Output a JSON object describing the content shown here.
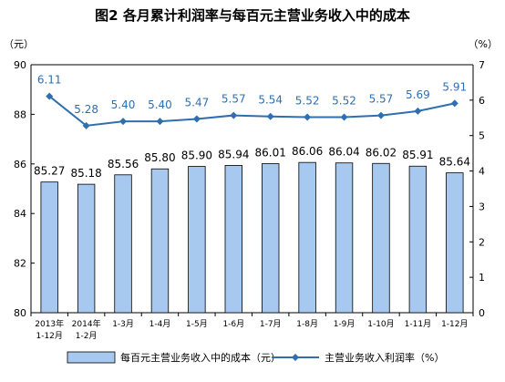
{
  "chart_data": {
    "type": "bar+line",
    "title": "图2  各月累计利润率与每百元主营业务收入中的成本",
    "categories": [
      [
        "2013年",
        "1-12月"
      ],
      [
        "2014年",
        "1-2月"
      ],
      [
        "1-3月"
      ],
      [
        "1-4月"
      ],
      [
        "1-5月"
      ],
      [
        "1-6月"
      ],
      [
        "1-7月"
      ],
      [
        "1-8月"
      ],
      [
        "1-9月"
      ],
      [
        "1-10月"
      ],
      [
        "1-11月"
      ],
      [
        "1-12月"
      ]
    ],
    "left_axis": {
      "unit": "（元）",
      "ylim": [
        80,
        90
      ],
      "ticks": [
        "80",
        "82",
        "84",
        "86",
        "88",
        "90"
      ]
    },
    "right_axis": {
      "unit": "（%）",
      "ylim": [
        0,
        7
      ],
      "ticks": [
        "0",
        "1",
        "2",
        "3",
        "4",
        "5",
        "6",
        "7"
      ]
    },
    "series": [
      {
        "name": "每百元主营业务收入中的成本（元）",
        "type": "bar",
        "axis": "left",
        "color": "#a7c9f0",
        "stroke": "#000000",
        "values": [
          85.27,
          85.18,
          85.56,
          85.8,
          85.9,
          85.94,
          86.01,
          86.06,
          86.04,
          86.02,
          85.91,
          85.64
        ],
        "labels": [
          "85.27",
          "85.18",
          "85.56",
          "85.80",
          "85.90",
          "85.94",
          "86.01",
          "86.06",
          "86.04",
          "86.02",
          "85.91",
          "85.64"
        ]
      },
      {
        "name": "主营业务收入利润率（%）",
        "type": "line",
        "axis": "right",
        "color": "#2f6fb0",
        "marker": "diamond",
        "values": [
          6.11,
          5.28,
          5.4,
          5.4,
          5.47,
          5.57,
          5.54,
          5.52,
          5.52,
          5.57,
          5.69,
          5.91
        ],
        "labels": [
          "6.11",
          "5.28",
          "5.40",
          "5.40",
          "5.47",
          "5.57",
          "5.54",
          "5.52",
          "5.52",
          "5.57",
          "5.69",
          "5.91"
        ]
      }
    ],
    "grid": false,
    "legend_position": "bottom"
  }
}
